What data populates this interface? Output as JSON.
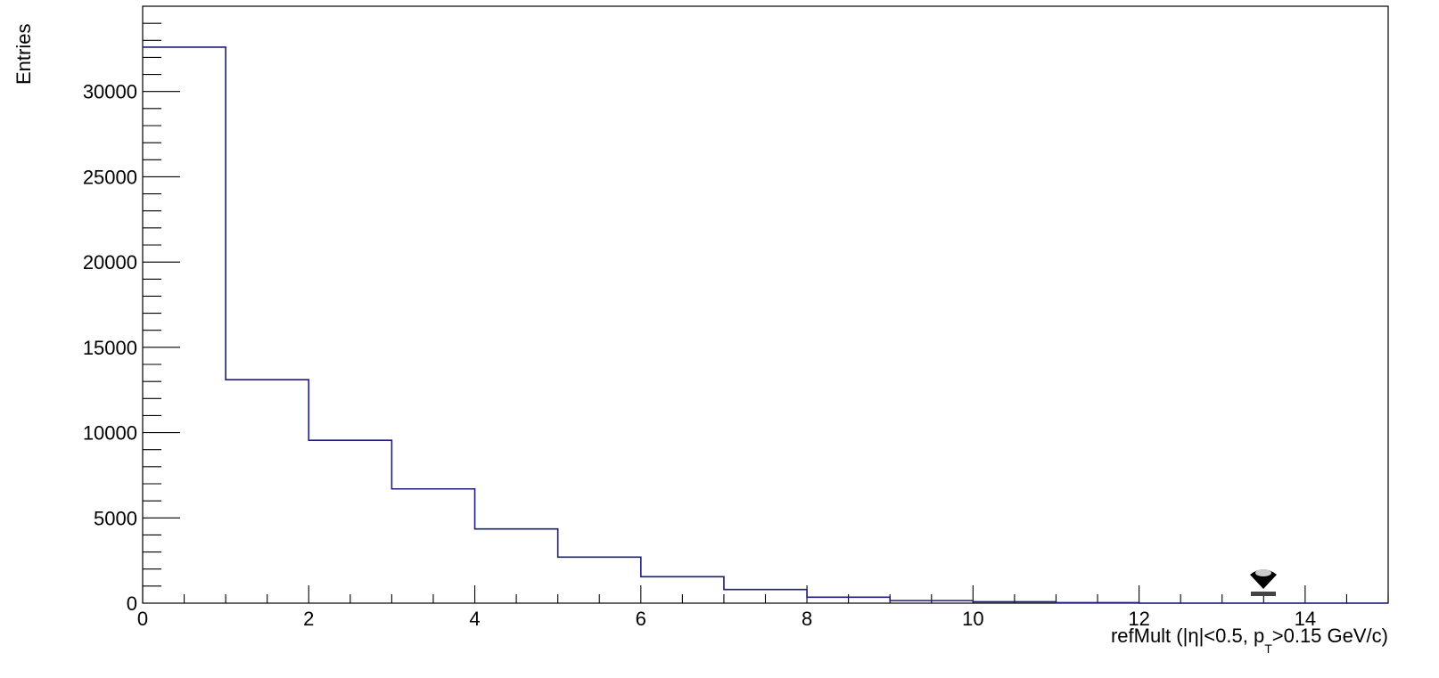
{
  "chart_data": {
    "type": "histogram",
    "title": "",
    "xlabel_prefix": "refMult (",
    "xlabel_eta": "|η|<0.5, p",
    "xlabel_sub": "T",
    "xlabel_suffix": ">0.15 GeV/c)",
    "ylabel": "Entries",
    "xlim": [
      0,
      15
    ],
    "ylim": [
      0,
      35000
    ],
    "x_ticks": [
      0,
      2,
      4,
      6,
      8,
      10,
      12,
      14
    ],
    "y_ticks": [
      0,
      5000,
      10000,
      15000,
      20000,
      25000,
      30000
    ],
    "x_tick_labels": [
      "0",
      "2",
      "4",
      "6",
      "8",
      "10",
      "12",
      "14"
    ],
    "y_tick_labels": [
      "0",
      "5000",
      "10000",
      "15000",
      "20000",
      "25000",
      "30000"
    ],
    "bin_edges": [
      0,
      1,
      2,
      3,
      4,
      5,
      6,
      7,
      8,
      9,
      10,
      11,
      12,
      13,
      14,
      15
    ],
    "bin_values": [
      32600,
      13100,
      9550,
      6700,
      4350,
      2700,
      1550,
      800,
      350,
      150,
      80,
      30,
      0,
      0,
      0
    ],
    "line_color": "#1c1c7a",
    "grid": false,
    "legend": "none"
  }
}
